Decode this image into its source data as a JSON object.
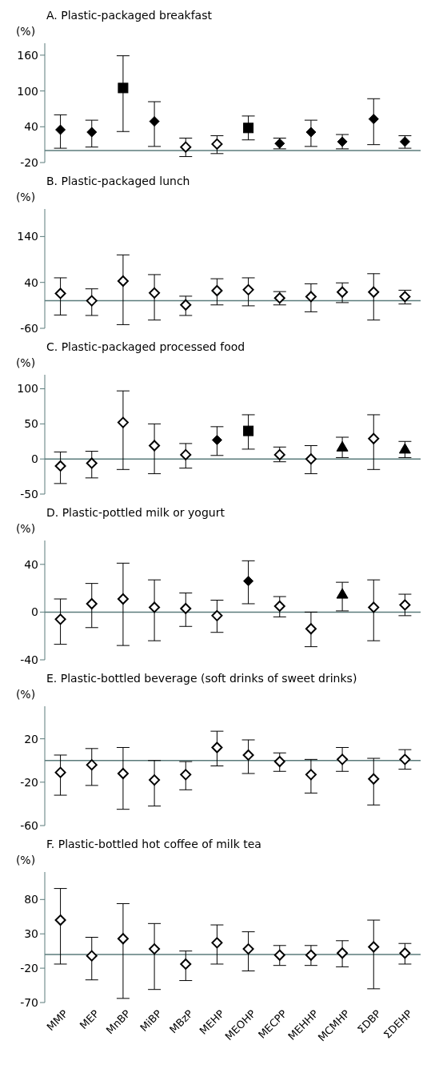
{
  "chart_data": [
    {
      "type": "scatter",
      "title": "A. Plastic-packaged breakfast",
      "ylabel": "(%)",
      "categories": [
        null,
        null,
        null,
        null,
        null,
        null,
        null,
        null,
        null,
        null,
        null,
        null
      ],
      "ylim": [
        -20,
        180
      ],
      "yticks": [
        -20,
        40,
        100,
        160
      ],
      "tick_labels": "y",
      "ref_lines": [
        {
          "axis": "y",
          "value": 0,
          "color": "#5b7b7b"
        }
      ],
      "series": [
        {
          "marker": "diamond",
          "color": "#000000",
          "values": [
            35,
            31,
            null,
            49,
            null,
            null,
            null,
            12,
            31,
            15,
            53,
            15
          ],
          "errors": [
            [
              4,
              60
            ],
            [
              6,
              51
            ],
            null,
            [
              7,
              82
            ],
            null,
            null,
            null,
            [
              3,
              21
            ],
            [
              7,
              51
            ],
            [
              3,
              27
            ],
            [
              10,
              87
            ],
            [
              4,
              25
            ]
          ]
        },
        {
          "marker": "square",
          "color": "#000000",
          "values": [
            null,
            null,
            105,
            null,
            null,
            null,
            38,
            null,
            null,
            null,
            null,
            null
          ],
          "errors": [
            null,
            null,
            [
              32,
              159
            ],
            null,
            null,
            null,
            [
              18,
              58
            ],
            null,
            null,
            null,
            null,
            null
          ]
        },
        {
          "marker": "diamond",
          "color": "#ffffff",
          "values": [
            null,
            null,
            null,
            null,
            6,
            11,
            null,
            null,
            null,
            null,
            null,
            null
          ],
          "errors": [
            null,
            null,
            null,
            null,
            [
              -10,
              21
            ],
            [
              -5,
              25
            ],
            null,
            null,
            null,
            null,
            null,
            null
          ]
        }
      ]
    },
    {
      "type": "scatter",
      "title": "B. Plastic-packaged lunch",
      "ylabel": "(%)",
      "categories": [
        null,
        null,
        null,
        null,
        null,
        null,
        null,
        null,
        null,
        null,
        null,
        null
      ],
      "ylim": [
        -60,
        200
      ],
      "yticks": [
        -60,
        40,
        140
      ],
      "tick_labels": "y",
      "ref_lines": [
        {
          "axis": "y",
          "value": 0,
          "color": "#5b7b7b"
        }
      ],
      "series": [
        {
          "marker": "diamond",
          "color": "#ffffff",
          "values": [
            16,
            0,
            43,
            17,
            -9,
            22,
            24,
            6,
            9,
            19,
            19,
            9
          ],
          "errors": [
            [
              -31,
              50
            ],
            [
              -32,
              26
            ],
            [
              -52,
              100
            ],
            [
              -42,
              57
            ],
            [
              -32,
              10
            ],
            [
              -9,
              48
            ],
            [
              -11,
              50
            ],
            [
              -9,
              20
            ],
            [
              -24,
              37
            ],
            [
              -4,
              39
            ],
            [
              -42,
              59
            ],
            [
              -7,
              23
            ]
          ]
        }
      ]
    },
    {
      "type": "scatter",
      "title": "C. Plastic-packaged processed food",
      "ylabel": "(%)",
      "categories": [
        null,
        null,
        null,
        null,
        null,
        null,
        null,
        null,
        null,
        null,
        null,
        null
      ],
      "ylim": [
        -50,
        120
      ],
      "yticks": [
        -50,
        0,
        50,
        100
      ],
      "tick_labels": "y",
      "ref_lines": [
        {
          "axis": "y",
          "value": 0,
          "color": "#5b7b7b"
        }
      ],
      "series": [
        {
          "marker": "diamond",
          "color": "#ffffff",
          "values": [
            -10,
            -6,
            52,
            19,
            6,
            null,
            null,
            6,
            0,
            null,
            29,
            null
          ],
          "errors": [
            [
              -35,
              10
            ],
            [
              -27,
              11
            ],
            [
              -15,
              97
            ],
            [
              -21,
              50
            ],
            [
              -13,
              22
            ],
            null,
            null,
            [
              -4,
              17
            ],
            [
              -21,
              19
            ],
            null,
            [
              -15,
              63
            ],
            null
          ]
        },
        {
          "marker": "diamond",
          "color": "#000000",
          "values": [
            null,
            null,
            null,
            null,
            null,
            27,
            null,
            null,
            null,
            null,
            null,
            null
          ],
          "errors": [
            null,
            null,
            null,
            null,
            null,
            [
              5,
              46
            ],
            null,
            null,
            null,
            null,
            null,
            null
          ]
        },
        {
          "marker": "square",
          "color": "#000000",
          "values": [
            null,
            null,
            null,
            null,
            null,
            null,
            40,
            null,
            null,
            null,
            null,
            null
          ],
          "errors": [
            null,
            null,
            null,
            null,
            null,
            null,
            [
              14,
              63
            ],
            null,
            null,
            null,
            null,
            null
          ]
        },
        {
          "marker": "triangle",
          "color": "#000000",
          "values": [
            null,
            null,
            null,
            null,
            null,
            null,
            null,
            null,
            null,
            17,
            null,
            14
          ],
          "errors": [
            null,
            null,
            null,
            null,
            null,
            null,
            null,
            null,
            null,
            [
              2,
              31
            ],
            null,
            [
              2,
              25
            ]
          ]
        }
      ]
    },
    {
      "type": "scatter",
      "title": "D. Plastic-pottled milk or yogurt",
      "ylabel": "(%)",
      "categories": [
        null,
        null,
        null,
        null,
        null,
        null,
        null,
        null,
        null,
        null,
        null,
        null
      ],
      "ylim": [
        -40,
        60
      ],
      "yticks": [
        -40,
        0,
        40
      ],
      "tick_labels": "y",
      "ref_lines": [
        {
          "axis": "y",
          "value": 0,
          "color": "#5b7b7b"
        }
      ],
      "series": [
        {
          "marker": "diamond",
          "color": "#ffffff",
          "values": [
            -6,
            7,
            11,
            4,
            3,
            -3,
            null,
            5,
            -14,
            null,
            4,
            6
          ],
          "errors": [
            [
              -27,
              11
            ],
            [
              -13,
              24
            ],
            [
              -28,
              41
            ],
            [
              -24,
              27
            ],
            [
              -12,
              16
            ],
            [
              -17,
              10
            ],
            null,
            [
              -4,
              13
            ],
            [
              -29,
              0
            ],
            null,
            [
              -24,
              27
            ],
            [
              -3,
              15
            ]
          ]
        },
        {
          "marker": "diamond",
          "color": "#000000",
          "values": [
            null,
            null,
            null,
            null,
            null,
            null,
            26,
            null,
            null,
            null,
            null,
            null
          ],
          "errors": [
            null,
            null,
            null,
            null,
            null,
            null,
            [
              7,
              43
            ],
            null,
            null,
            null,
            null,
            null
          ]
        },
        {
          "marker": "triangle",
          "color": "#000000",
          "values": [
            null,
            null,
            null,
            null,
            null,
            null,
            null,
            null,
            null,
            15,
            null,
            null
          ],
          "errors": [
            null,
            null,
            null,
            null,
            null,
            null,
            null,
            null,
            null,
            [
              1,
              25
            ],
            null,
            null
          ]
        }
      ]
    },
    {
      "type": "scatter",
      "title": "E. Plastic-bottled beverage (soft drinks of sweet drinks)",
      "ylabel": "(%)",
      "categories": [
        null,
        null,
        null,
        null,
        null,
        null,
        null,
        null,
        null,
        null,
        null,
        null
      ],
      "ylim": [
        -60,
        50
      ],
      "yticks": [
        -60,
        -20,
        20
      ],
      "tick_labels": "y",
      "ref_lines": [
        {
          "axis": "y",
          "value": 0,
          "color": "#5b7b7b"
        }
      ],
      "series": [
        {
          "marker": "diamond",
          "color": "#ffffff",
          "values": [
            -11,
            -4,
            -12,
            -18,
            -13,
            12,
            5,
            -1,
            -13,
            1,
            -17,
            1
          ],
          "errors": [
            [
              -32,
              5
            ],
            [
              -23,
              11
            ],
            [
              -45,
              12
            ],
            [
              -42,
              0
            ],
            [
              -27,
              -1
            ],
            [
              -5,
              27
            ],
            [
              -12,
              19
            ],
            [
              -10,
              7
            ],
            [
              -30,
              1
            ],
            [
              -10,
              12
            ],
            [
              -41,
              2
            ],
            [
              -8,
              10
            ]
          ]
        }
      ]
    },
    {
      "type": "scatter",
      "title": "F. Plastic-bottled hot coffee of milk tea",
      "ylabel": "(%)",
      "categories": [
        "MMP",
        "MEP",
        "MnBP",
        "MiBP",
        "MBzP",
        "MEHP",
        "MEOHP",
        "MECPP",
        "MEHHP",
        "MCMHP",
        "ΣDBP",
        "ΣDEHP"
      ],
      "ylim": [
        -70,
        120
      ],
      "yticks": [
        -70,
        -20,
        30,
        80
      ],
      "ref_lines": [
        {
          "axis": "y",
          "value": 0,
          "color": "#5b7b7b"
        }
      ],
      "series": [
        {
          "marker": "diamond",
          "color": "#ffffff",
          "values": [
            50,
            -2,
            23,
            8,
            -14,
            17,
            8,
            -1,
            -1,
            2,
            11,
            2
          ],
          "errors": [
            [
              -14,
              96
            ],
            [
              -37,
              25
            ],
            [
              -64,
              74
            ],
            [
              -51,
              45
            ],
            [
              -38,
              5
            ],
            [
              -14,
              43
            ],
            [
              -24,
              33
            ],
            [
              -16,
              13
            ],
            [
              -16,
              13
            ],
            [
              -18,
              20
            ],
            [
              -50,
              50
            ],
            [
              -14,
              16
            ]
          ]
        }
      ]
    }
  ]
}
